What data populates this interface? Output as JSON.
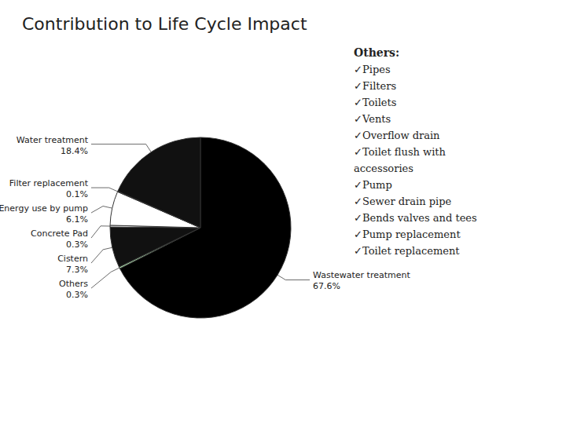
{
  "chart_data": {
    "type": "pie",
    "title": "Contribution to Life Cycle Impact",
    "categories": [
      "Wastewater treatment",
      "Others",
      "Cistern",
      "Concrete Pad",
      "Energy use by pump",
      "Filter replacement",
      "Water treatment"
    ],
    "values": [
      67.6,
      0.3,
      7.3,
      0.3,
      6.1,
      0.1,
      18.4
    ],
    "value_labels": [
      "67.6%",
      "0.3%",
      "7.3%",
      "0.3%",
      "6.1%",
      "0.1%",
      "18.4%"
    ],
    "colors": [
      "#000000",
      "#aaddaa",
      "#111111",
      "#ffffff",
      "#ffffff",
      "#dddddd",
      "#111111"
    ],
    "annotations": [
      "Others:",
      "✓Pipes",
      "✓Filters",
      "✓Toilets",
      "✓Vents",
      "✓Overflow drain",
      "✓Toilet flush with",
      "accessories",
      "✓Pump",
      "✓Sewer drain pipe",
      "✓Bends valves and tees",
      "✓Pump replacement",
      "✓Toilet replacement"
    ]
  }
}
